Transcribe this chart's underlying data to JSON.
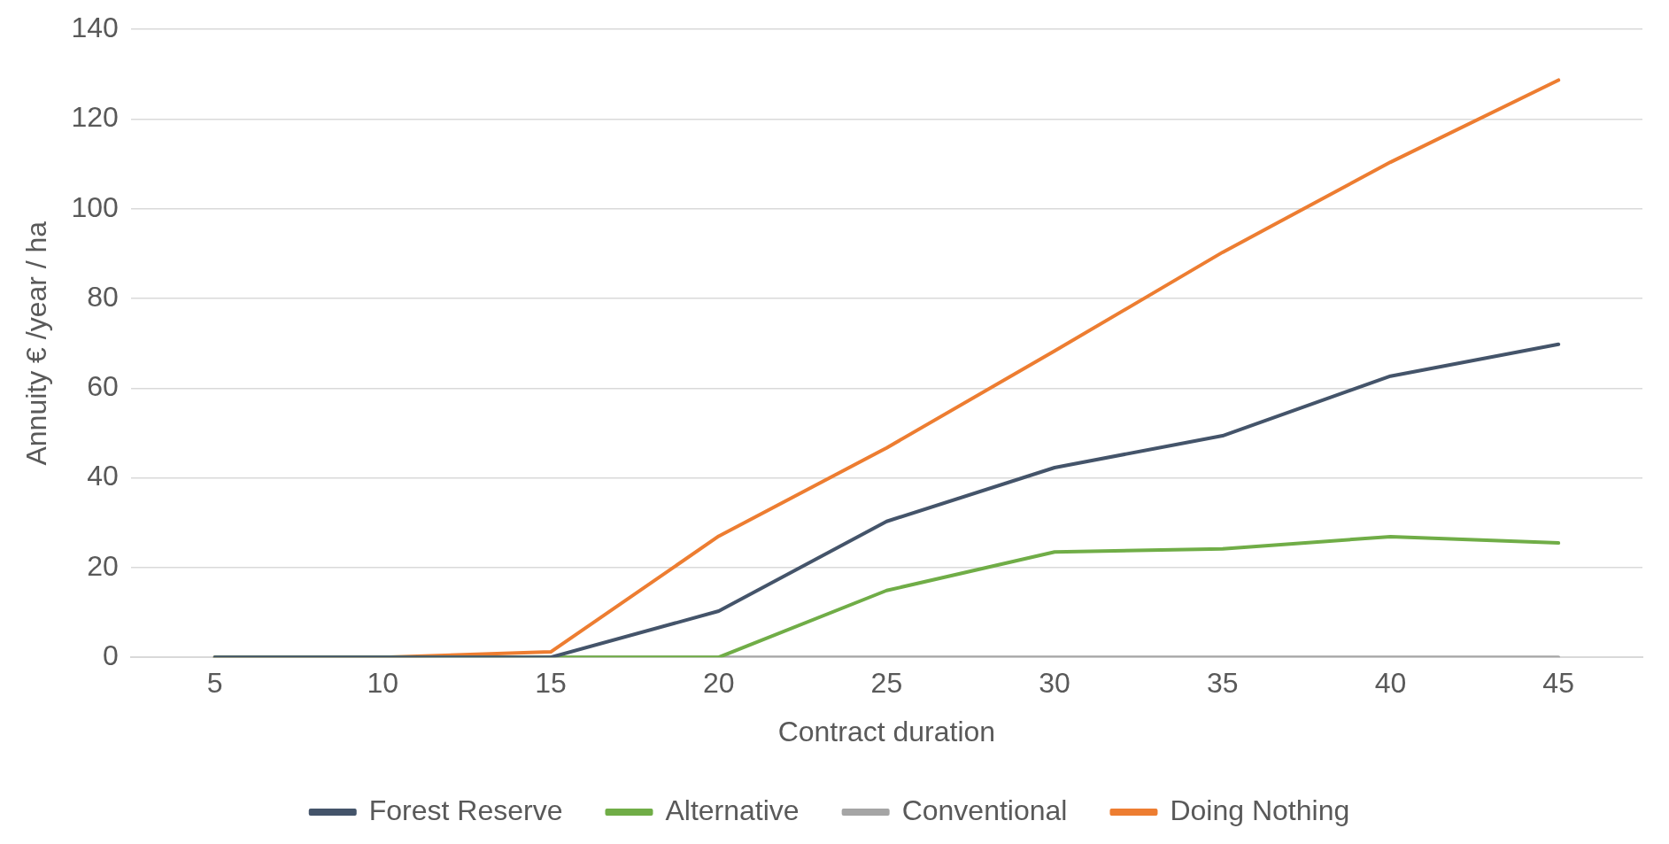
{
  "chart_data": {
    "type": "line",
    "xlabel": "Contract duration",
    "ylabel": "Annuity € /year / ha",
    "categories": [
      "5",
      "10",
      "15",
      "20",
      "25",
      "30",
      "35",
      "40",
      "45"
    ],
    "series": [
      {
        "name": "Forest Reserve",
        "color": "#44546a",
        "values": [
          0,
          0,
          0,
          10.3,
          30.3,
          42.3,
          49.4,
          62.7,
          69.8
        ]
      },
      {
        "name": "Alternative",
        "color": "#70ad47",
        "values": [
          0,
          0,
          0,
          0,
          14.9,
          23.5,
          24.2,
          26.9,
          25.5
        ]
      },
      {
        "name": "Conventional",
        "color": "#a5a5a5",
        "values": [
          0,
          0,
          0,
          0,
          0,
          0,
          0,
          0,
          0
        ]
      },
      {
        "name": "Doing Nothing",
        "color": "#ed7d31",
        "values": [
          0,
          0,
          1.2,
          27,
          46.7,
          68.3,
          90.3,
          110.4,
          128.7
        ]
      }
    ],
    "ylim": [
      0,
      140
    ],
    "yticks": [
      0,
      20,
      40,
      60,
      80,
      100,
      120,
      140
    ],
    "grid": "y",
    "legend": "bottom",
    "marker": "none",
    "line_style": "solid"
  }
}
